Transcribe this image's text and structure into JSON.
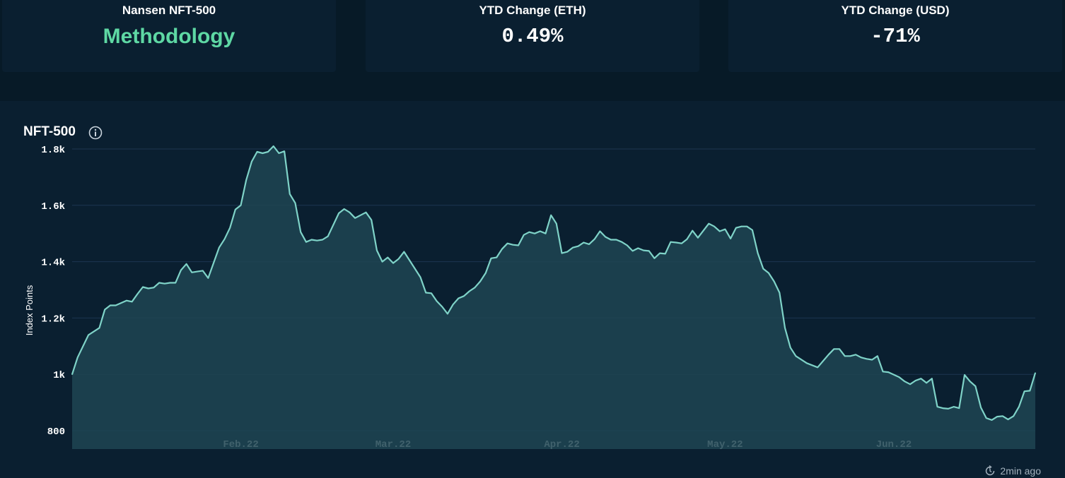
{
  "cards": [
    {
      "label": "Nansen NFT-500",
      "value": "Methodology"
    },
    {
      "label": "YTD Change (ETH)",
      "value": "0.49%"
    },
    {
      "label": "YTD Change (USD)",
      "value": "-71%"
    }
  ],
  "chart_title": "NFT-500",
  "updated": "2min ago",
  "colors": {
    "line": "#7fd3c8",
    "fill": "#1e4552",
    "grid": "#1d3650",
    "accent": "#5ed8a4"
  },
  "chart_data": {
    "type": "area",
    "title": "NFT-500",
    "xlabel": "",
    "ylabel": "Index Points",
    "ylim": [
      735,
      1820
    ],
    "xlim": [
      "2022-01-01",
      "2022-06-27"
    ],
    "grid": true,
    "x_ticks": [
      {
        "date": "2022-02-01",
        "label": "Feb.22"
      },
      {
        "date": "2022-03-01",
        "label": "Mar.22"
      },
      {
        "date": "2022-04-01",
        "label": "Apr.22"
      },
      {
        "date": "2022-05-01",
        "label": "May.22"
      },
      {
        "date": "2022-06-01",
        "label": "Jun.22"
      }
    ],
    "y_ticks": [
      {
        "value": 800,
        "label": "800"
      },
      {
        "value": 1000,
        "label": "1k"
      },
      {
        "value": 1200,
        "label": "1.2k"
      },
      {
        "value": 1400,
        "label": "1.4k"
      },
      {
        "value": 1600,
        "label": "1.6k"
      },
      {
        "value": 1800,
        "label": "1.8k"
      }
    ],
    "series": [
      {
        "x": [
          "2022-01-01",
          "2022-01-02",
          "2022-01-04",
          "2022-01-06",
          "2022-01-07",
          "2022-01-08",
          "2022-01-09",
          "2022-01-11",
          "2022-01-12",
          "2022-01-13",
          "2022-01-14",
          "2022-01-15",
          "2022-01-16",
          "2022-01-17",
          "2022-01-18",
          "2022-01-19",
          "2022-01-20",
          "2022-01-21",
          "2022-01-22",
          "2022-01-23",
          "2022-01-24",
          "2022-01-25",
          "2022-01-26",
          "2022-01-28",
          "2022-01-29",
          "2022-01-30",
          "2022-01-31",
          "2022-02-01",
          "2022-02-02",
          "2022-02-03",
          "2022-02-04",
          "2022-02-05",
          "2022-02-06",
          "2022-02-07",
          "2022-02-08",
          "2022-02-09",
          "2022-02-10",
          "2022-02-11",
          "2022-02-12",
          "2022-02-13",
          "2022-02-14",
          "2022-02-15",
          "2022-02-16",
          "2022-02-17",
          "2022-02-19",
          "2022-02-20",
          "2022-02-21",
          "2022-02-22",
          "2022-02-23",
          "2022-02-24",
          "2022-02-25",
          "2022-02-26",
          "2022-02-27",
          "2022-02-28",
          "2022-03-01",
          "2022-03-02",
          "2022-03-03",
          "2022-03-04",
          "2022-03-05",
          "2022-03-06",
          "2022-03-07",
          "2022-03-08",
          "2022-03-09",
          "2022-03-10",
          "2022-03-11",
          "2022-03-12",
          "2022-03-13",
          "2022-03-14",
          "2022-03-15",
          "2022-03-16",
          "2022-03-17",
          "2022-03-18",
          "2022-03-19",
          "2022-03-20",
          "2022-03-21",
          "2022-03-22",
          "2022-03-23",
          "2022-03-24",
          "2022-03-25",
          "2022-03-26",
          "2022-03-27",
          "2022-03-28",
          "2022-03-29",
          "2022-03-30",
          "2022-03-31",
          "2022-04-01",
          "2022-04-02",
          "2022-04-03",
          "2022-04-04",
          "2022-04-05",
          "2022-04-06",
          "2022-04-07",
          "2022-04-08",
          "2022-04-09",
          "2022-04-10",
          "2022-04-11",
          "2022-04-12",
          "2022-04-13",
          "2022-04-14",
          "2022-04-15",
          "2022-04-16",
          "2022-04-17",
          "2022-04-18",
          "2022-04-19",
          "2022-04-20",
          "2022-04-21",
          "2022-04-22",
          "2022-04-23",
          "2022-04-24",
          "2022-04-25",
          "2022-04-26",
          "2022-04-27",
          "2022-04-28",
          "2022-04-29",
          "2022-04-30",
          "2022-05-01",
          "2022-05-02",
          "2022-05-03",
          "2022-05-04",
          "2022-05-05",
          "2022-05-06",
          "2022-05-07",
          "2022-05-08",
          "2022-05-09",
          "2022-05-10",
          "2022-05-11",
          "2022-05-12",
          "2022-05-13",
          "2022-05-14",
          "2022-05-16",
          "2022-05-18",
          "2022-05-20",
          "2022-05-21",
          "2022-05-22",
          "2022-05-23",
          "2022-05-24",
          "2022-05-25",
          "2022-05-26",
          "2022-05-27",
          "2022-05-28",
          "2022-05-29",
          "2022-05-30",
          "2022-05-31",
          "2022-06-02",
          "2022-06-03",
          "2022-06-04",
          "2022-06-05",
          "2022-06-06",
          "2022-06-07",
          "2022-06-08",
          "2022-06-09",
          "2022-06-10",
          "2022-06-11",
          "2022-06-12",
          "2022-06-13",
          "2022-06-14",
          "2022-06-15",
          "2022-06-16",
          "2022-06-17",
          "2022-06-18",
          "2022-06-19",
          "2022-06-20",
          "2022-06-21",
          "2022-06-22",
          "2022-06-23",
          "2022-06-24",
          "2022-06-25",
          "2022-06-26",
          "2022-06-27"
        ],
        "y": [
          1000,
          1060,
          1140,
          1165,
          1230,
          1245,
          1245,
          1262,
          1258,
          1285,
          1310,
          1305,
          1308,
          1325,
          1322,
          1325,
          1325,
          1370,
          1392,
          1362,
          1365,
          1368,
          1342,
          1450,
          1480,
          1520,
          1585,
          1600,
          1690,
          1755,
          1790,
          1785,
          1790,
          1810,
          1785,
          1792,
          1640,
          1608,
          1505,
          1470,
          1478,
          1475,
          1478,
          1490,
          1572,
          1587,
          1575,
          1555,
          1565,
          1575,
          1548,
          1440,
          1400,
          1415,
          1395,
          1410,
          1435,
          1405,
          1375,
          1345,
          1290,
          1288,
          1260,
          1240,
          1215,
          1248,
          1270,
          1278,
          1295,
          1308,
          1330,
          1360,
          1412,
          1415,
          1445,
          1465,
          1460,
          1458,
          1495,
          1505,
          1500,
          1508,
          1500,
          1565,
          1535,
          1430,
          1435,
          1450,
          1455,
          1468,
          1462,
          1480,
          1508,
          1488,
          1478,
          1478,
          1470,
          1458,
          1438,
          1448,
          1440,
          1438,
          1412,
          1430,
          1428,
          1470,
          1468,
          1465,
          1480,
          1510,
          1485,
          1510,
          1535,
          1525,
          1508,
          1515,
          1482,
          1520,
          1525,
          1525,
          1512,
          1430,
          1375,
          1360,
          1330,
          1290,
          1165,
          1095,
          1065,
          1040,
          1025,
          1070,
          1090,
          1090,
          1065,
          1065,
          1070,
          1060,
          1055,
          1052,
          1065,
          1010,
          1008,
          990,
          975,
          965,
          978,
          985,
          970,
          985,
          885,
          880,
          878,
          885,
          880,
          998,
          975,
          958,
          882,
          845,
          838,
          850,
          852,
          840,
          852,
          885,
          940,
          942,
          1005
        ]
      }
    ]
  }
}
